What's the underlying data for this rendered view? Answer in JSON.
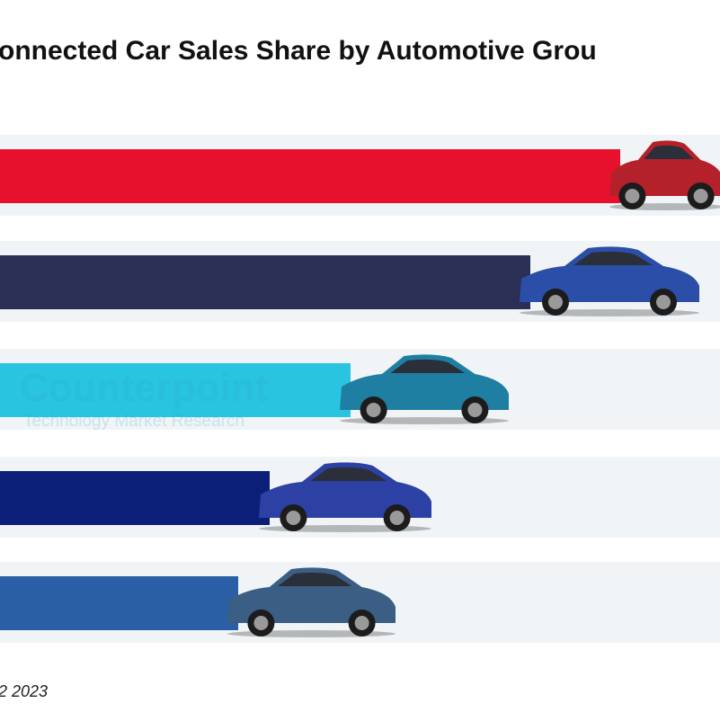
{
  "header": {
    "title": "onnected Car Sales Share by Automotive Grou"
  },
  "watermark": {
    "brand": "Counterpoint",
    "tagline": "Technology Market Research"
  },
  "footer": {
    "note": "2 2023"
  }
}
